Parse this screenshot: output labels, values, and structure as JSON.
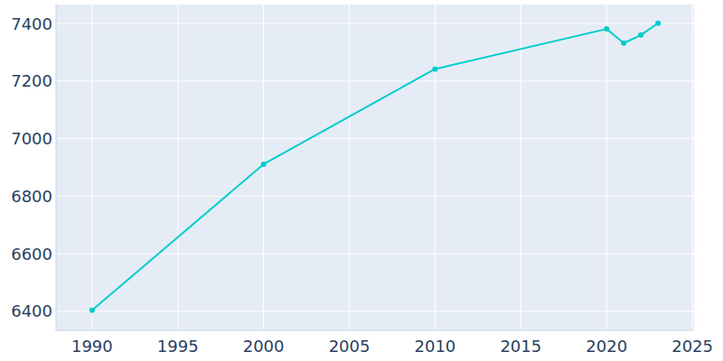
{
  "chart_data": {
    "type": "line",
    "x": [
      1990,
      2000,
      2010,
      2020,
      2021,
      2022,
      2023
    ],
    "values": [
      6404,
      6911,
      7242,
      7381,
      7332,
      7360,
      7401
    ],
    "color": "#00cccc",
    "marker": "circle",
    "xlim": [
      1987.9,
      2025.1
    ],
    "xticks": [
      1990,
      1995,
      2000,
      2005,
      2010,
      2015,
      2020,
      2025
    ],
    "ylim": [
      6334,
      7466
    ],
    "yticks": [
      6400,
      6600,
      6800,
      7000,
      7200,
      7400
    ],
    "grid": true
  }
}
